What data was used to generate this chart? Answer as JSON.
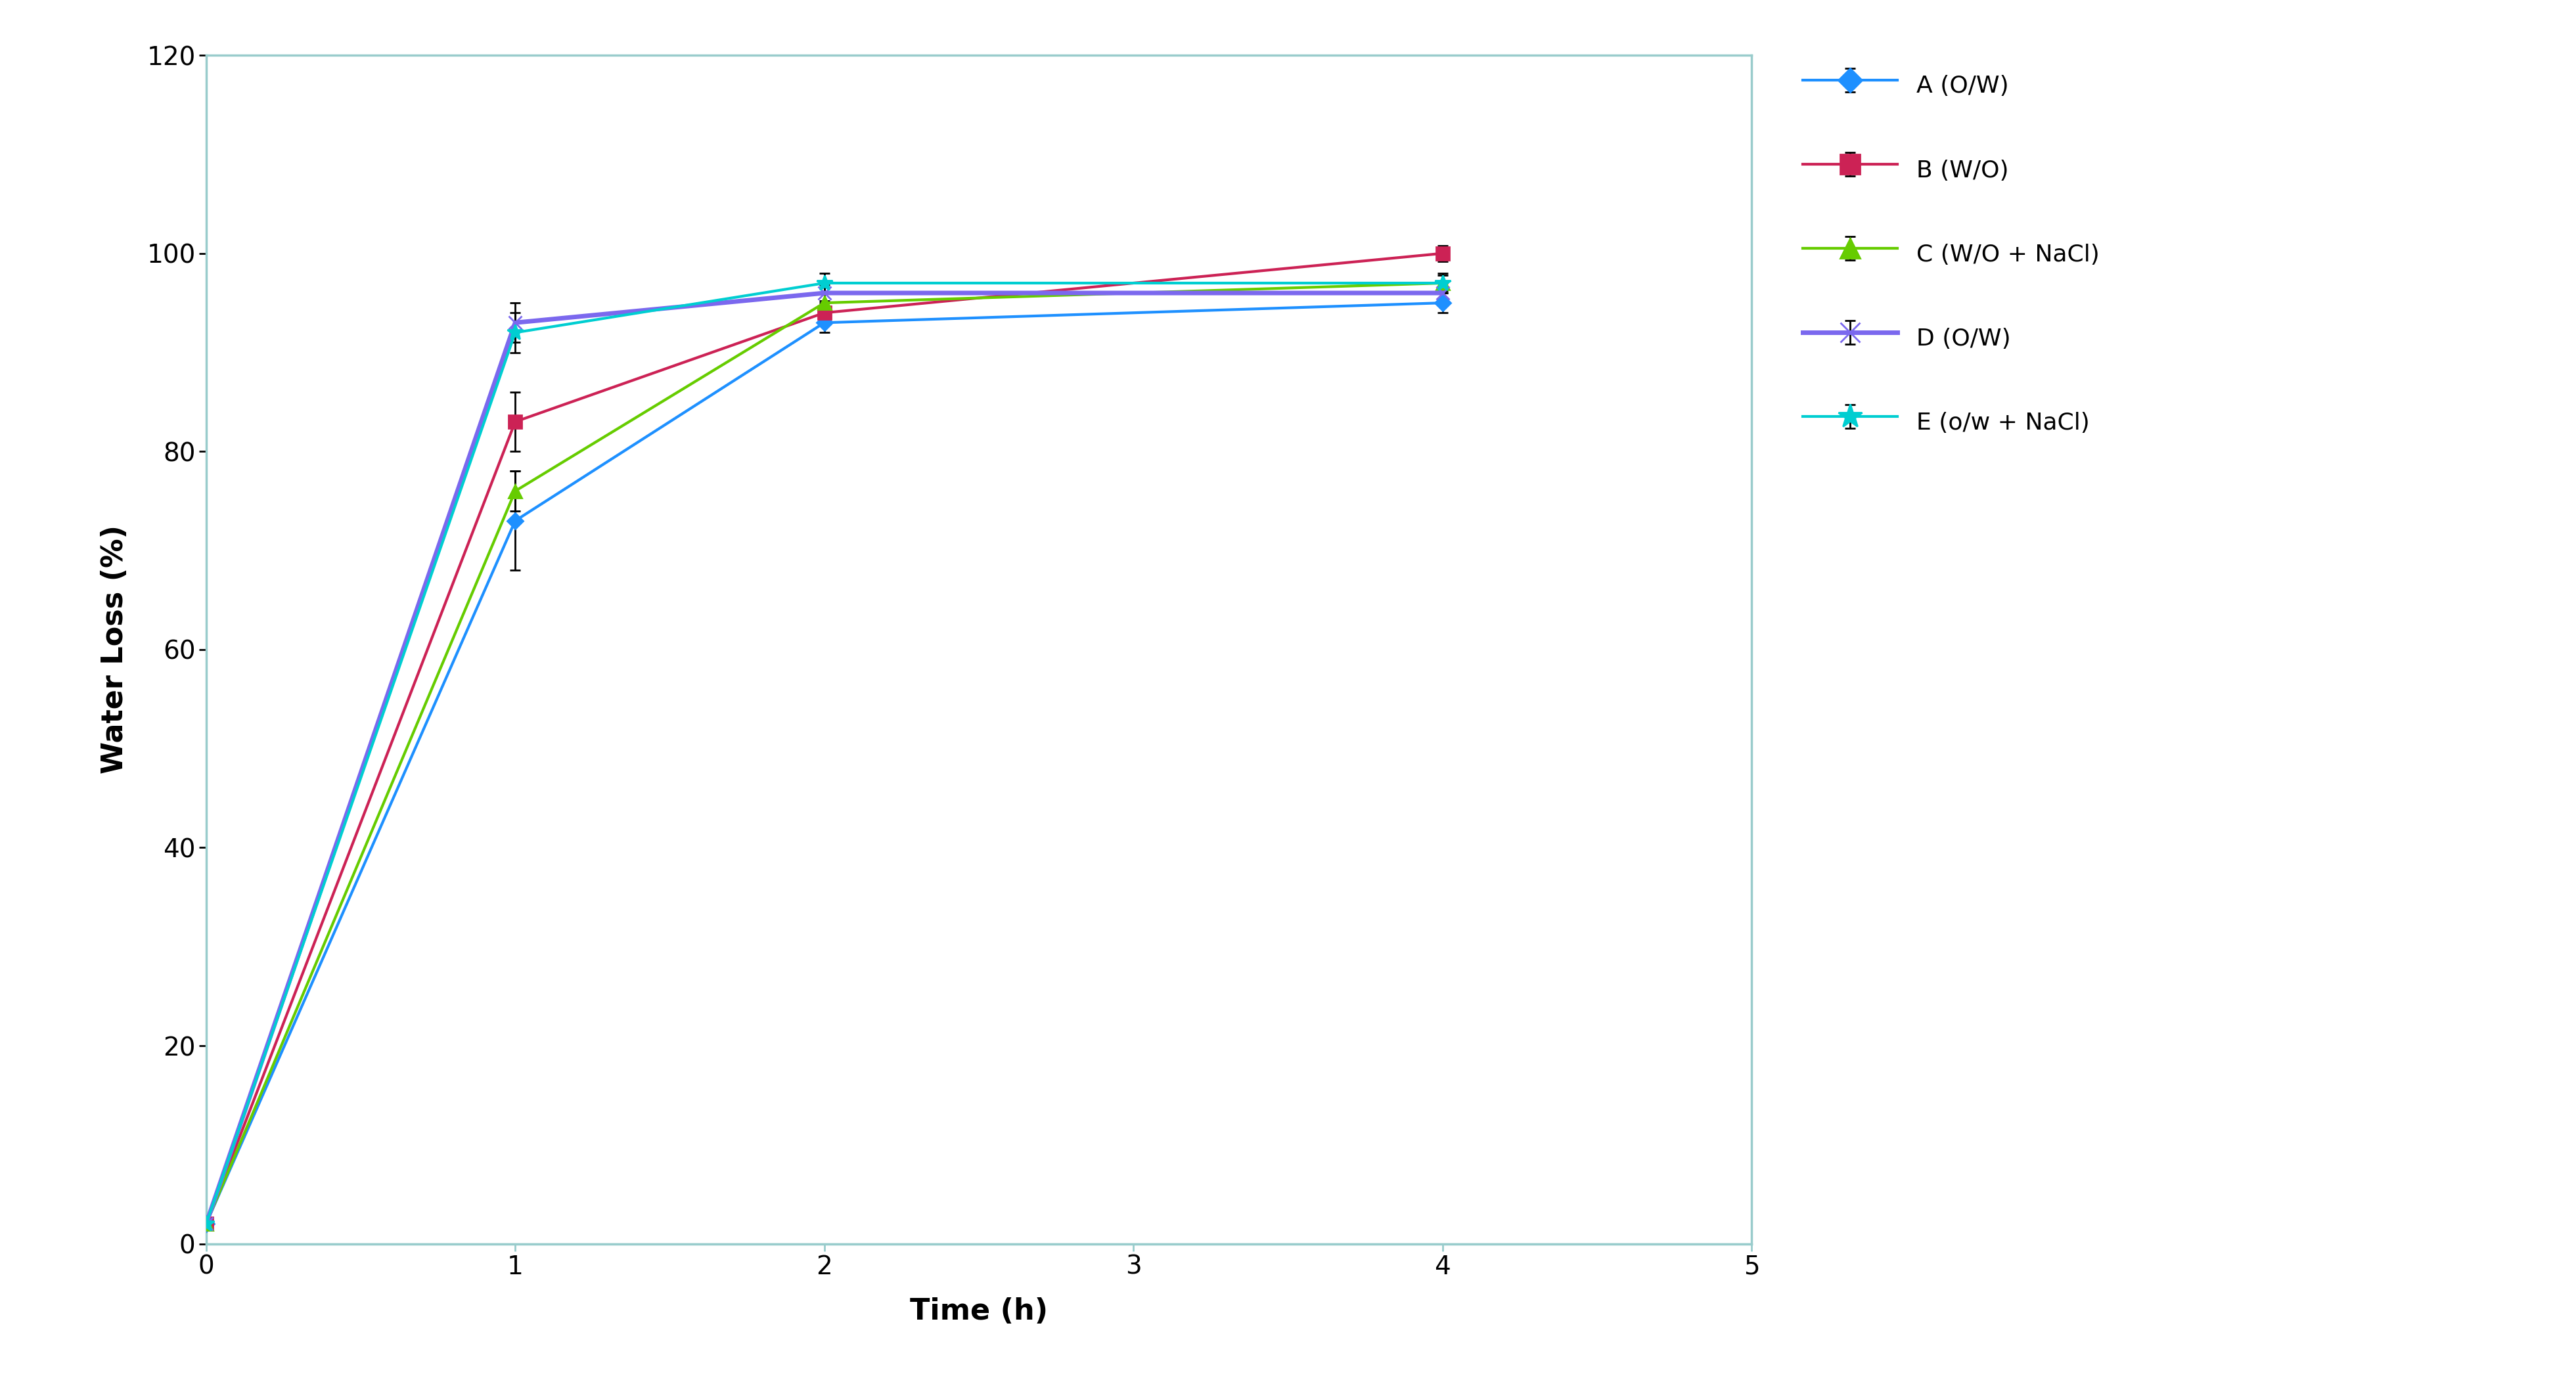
{
  "series": [
    {
      "label": "A (O/W)",
      "color": "#1E90FF",
      "marker": "D",
      "markersize": 12,
      "x": [
        0,
        1,
        2,
        4
      ],
      "y": [
        2,
        73,
        93,
        95
      ],
      "yerr": [
        0.3,
        5,
        1,
        1
      ],
      "linewidth": 3.0
    },
    {
      "label": "B (W/O)",
      "color": "#CC2255",
      "marker": "s",
      "markersize": 14,
      "x": [
        0,
        1,
        2,
        4
      ],
      "y": [
        2,
        83,
        94,
        100
      ],
      "yerr": [
        0.3,
        3,
        1,
        0.8
      ],
      "linewidth": 3.0
    },
    {
      "label": "C (W/O + NaCl)",
      "color": "#66CC00",
      "marker": "^",
      "markersize": 14,
      "x": [
        0,
        1,
        2,
        4
      ],
      "y": [
        2,
        76,
        95,
        97
      ],
      "yerr": [
        0.3,
        2,
        1,
        0.8
      ],
      "linewidth": 3.0
    },
    {
      "label": "D (O/W)",
      "color": "#7B68EE",
      "marker": "x",
      "markersize": 14,
      "x": [
        0,
        1,
        2,
        4
      ],
      "y": [
        2,
        93,
        96,
        96
      ],
      "yerr": [
        0.3,
        2,
        0.8,
        1
      ],
      "linewidth": 5.0
    },
    {
      "label": "E (o/w + NaCl)",
      "color": "#00CED1",
      "marker": "*",
      "markersize": 18,
      "x": [
        0,
        1,
        2,
        4
      ],
      "y": [
        2,
        92,
        97,
        97
      ],
      "yerr": [
        0.3,
        2,
        1,
        1
      ],
      "linewidth": 3.0
    }
  ],
  "xlabel": "Time (h)",
  "ylabel": "Water Loss (%)",
  "xlim": [
    0,
    5
  ],
  "ylim": [
    0,
    120
  ],
  "xticks": [
    0,
    1,
    2,
    3,
    4,
    5
  ],
  "yticks": [
    0,
    20,
    40,
    60,
    80,
    100,
    120
  ],
  "axis_color": "#99CCCC",
  "tick_fontsize": 28,
  "label_fontsize": 32,
  "legend_fontsize": 26,
  "figure_width": 39.21,
  "figure_height": 21.04
}
